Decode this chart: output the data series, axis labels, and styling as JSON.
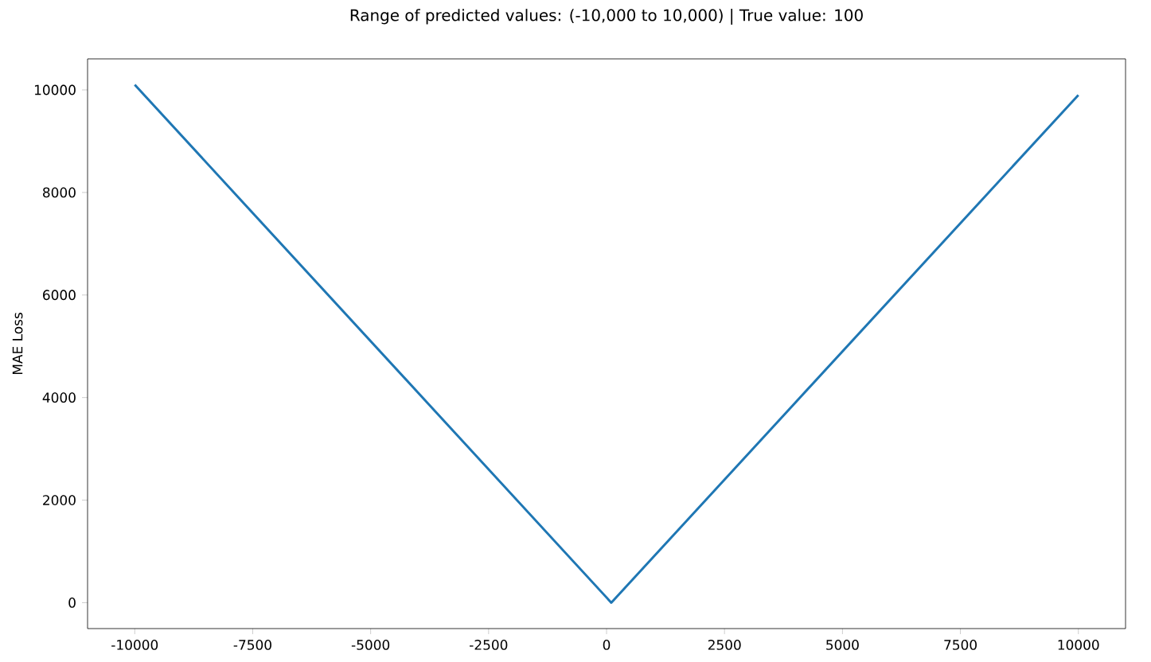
{
  "chart_data": {
    "type": "line",
    "title": "Range of predicted values: (-10,000 to 10,000) | True value: 100",
    "ylabel": "MAE Loss",
    "x": [
      -10000,
      100,
      10000
    ],
    "series": [
      {
        "color": "#1f77b4",
        "values": [
          10100,
          0,
          9900
        ]
      }
    ],
    "xlim": [
      -11000,
      11000
    ],
    "ylim": [
      -505,
      10605
    ],
    "xticks": [
      -10000,
      -7500,
      -5000,
      -2500,
      0,
      2500,
      5000,
      7500,
      10000
    ],
    "yticks": [
      0,
      2000,
      4000,
      6000,
      8000,
      10000
    ],
    "marker": "none",
    "line_style": "solid"
  }
}
